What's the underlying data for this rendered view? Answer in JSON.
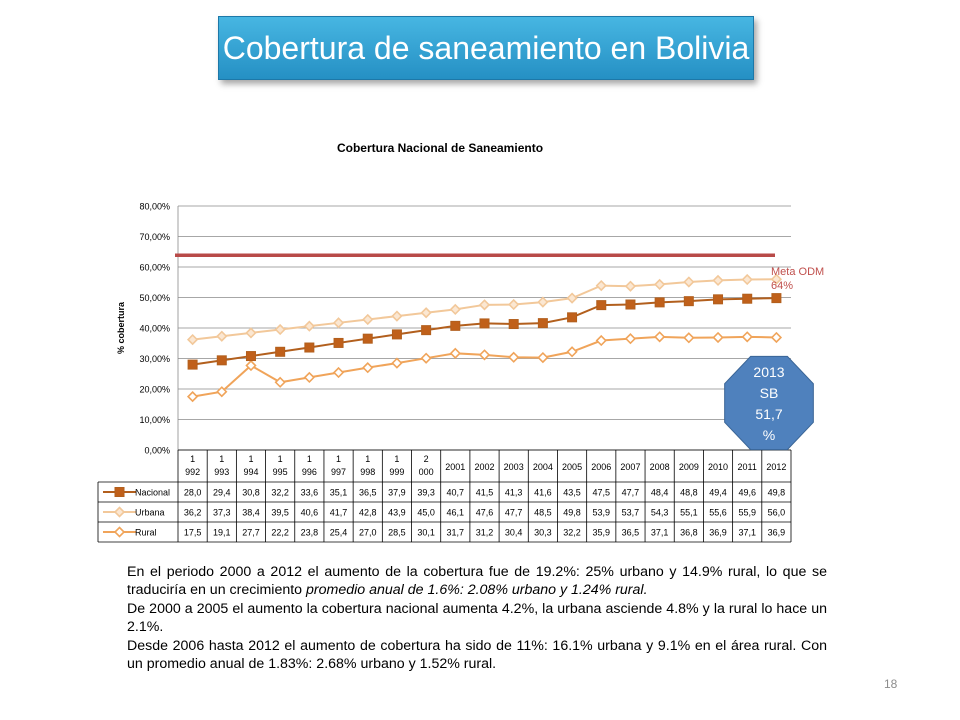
{
  "slide": {
    "title": "Cobertura de saneamiento en Bolivia",
    "page_number": "18",
    "paragraphs": [
      {
        "pre": "En el periodo 2000 a 2012 el aumento de la cobertura fue de 19.2%: 25% urbano y 14.9% rural, lo que se traduciría en un crecimiento ",
        "italic": "promedio anual de 1.6%: 2.08% urbano y 1.24% rural."
      },
      {
        "pre": "De 2000 a 2005 el aumento la cobertura nacional aumenta 4.2%, la urbana asciende 4.8% y la rural lo hace un 2.1%.",
        "italic": ""
      },
      {
        "pre": "Desde 2006 hasta 2012 el aumento de cobertura ha sido de 11%: 16.1% urbana y 9.1% en el área rural. Con un promedio anual de 1.83%: 2.68% urbano y 1.52% rural.",
        "italic": ""
      }
    ]
  },
  "chart_data": {
    "type": "line",
    "title": "Cobertura Nacional de Saneamiento",
    "ylabel": "% cobertura",
    "ylim": [
      0,
      80
    ],
    "yticks": [
      "0,00%",
      "10,00%",
      "20,00%",
      "30,00%",
      "40,00%",
      "50,00%",
      "60,00%",
      "70,00%",
      "80,00%"
    ],
    "grid": true,
    "categories": [
      [
        "1",
        "992"
      ],
      [
        "1",
        "993"
      ],
      [
        "1",
        "994"
      ],
      [
        "1",
        "995"
      ],
      [
        "1",
        "996"
      ],
      [
        "1",
        "997"
      ],
      [
        "1",
        "998"
      ],
      [
        "1",
        "999"
      ],
      [
        "2",
        "000"
      ],
      [
        "2001"
      ],
      [
        "2002"
      ],
      [
        "2003"
      ],
      [
        "2004"
      ],
      [
        "2005"
      ],
      [
        "2006"
      ],
      [
        "2007"
      ],
      [
        "2008"
      ],
      [
        "2009"
      ],
      [
        "2010"
      ],
      [
        "2011"
      ],
      [
        "2012"
      ]
    ],
    "series": [
      {
        "name": "Nacional",
        "color": "#b25f1d",
        "fill": "#c0601a",
        "marker": "square",
        "values": [
          28.0,
          29.4,
          30.8,
          32.2,
          33.6,
          35.1,
          36.5,
          37.9,
          39.3,
          40.7,
          41.5,
          41.3,
          41.6,
          43.5,
          47.5,
          47.7,
          48.4,
          48.8,
          49.4,
          49.6,
          49.8
        ],
        "labels": [
          "28,0",
          "29,4",
          "30,8",
          "32,2",
          "33,6",
          "35,1",
          "36,5",
          "37,9",
          "39,3",
          "40,7",
          "41,5",
          "41,3",
          "41,6",
          "43,5",
          "47,5",
          "47,7",
          "48,4",
          "48,8",
          "49,4",
          "49,6",
          "49,8"
        ]
      },
      {
        "name": "Urbana",
        "color": "#f2c89a",
        "fill": "#fbe7d2",
        "marker": "diamond",
        "values": [
          36.2,
          37.3,
          38.4,
          39.5,
          40.6,
          41.7,
          42.8,
          43.9,
          45.0,
          46.1,
          47.6,
          47.7,
          48.5,
          49.8,
          53.9,
          53.7,
          54.3,
          55.1,
          55.6,
          55.9,
          56.0
        ],
        "labels": [
          "36,2",
          "37,3",
          "38,4",
          "39,5",
          "40,6",
          "41,7",
          "42,8",
          "43,9",
          "45,0",
          "46,1",
          "47,6",
          "47,7",
          "48,5",
          "49,8",
          "53,9",
          "53,7",
          "54,3",
          "55,1",
          "55,6",
          "55,9",
          "56,0"
        ]
      },
      {
        "name": "Rural",
        "color": "#f0a45a",
        "fill": "#ffffff",
        "marker": "diamond",
        "values": [
          17.5,
          19.1,
          27.7,
          22.2,
          23.8,
          25.4,
          27.0,
          28.5,
          30.1,
          31.7,
          31.2,
          30.4,
          30.3,
          32.2,
          35.9,
          36.5,
          37.1,
          36.8,
          36.9,
          37.1,
          36.9
        ],
        "labels": [
          "17,5",
          "19,1",
          "27,7",
          "22,2",
          "23,8",
          "25,4",
          "27,0",
          "28,5",
          "30,1",
          "31,7",
          "31,2",
          "30,4",
          "30,3",
          "32,2",
          "35,9",
          "36,5",
          "37,1",
          "36,8",
          "36,9",
          "37,1",
          "36,9"
        ]
      }
    ],
    "target_line": {
      "value": 64,
      "color": "#b84a48",
      "label_lines": [
        "Meta ODM",
        "64%"
      ]
    },
    "callout": {
      "lines": [
        "2013",
        "SB",
        "51,7",
        "%"
      ],
      "fill": "#4f81bd"
    }
  }
}
